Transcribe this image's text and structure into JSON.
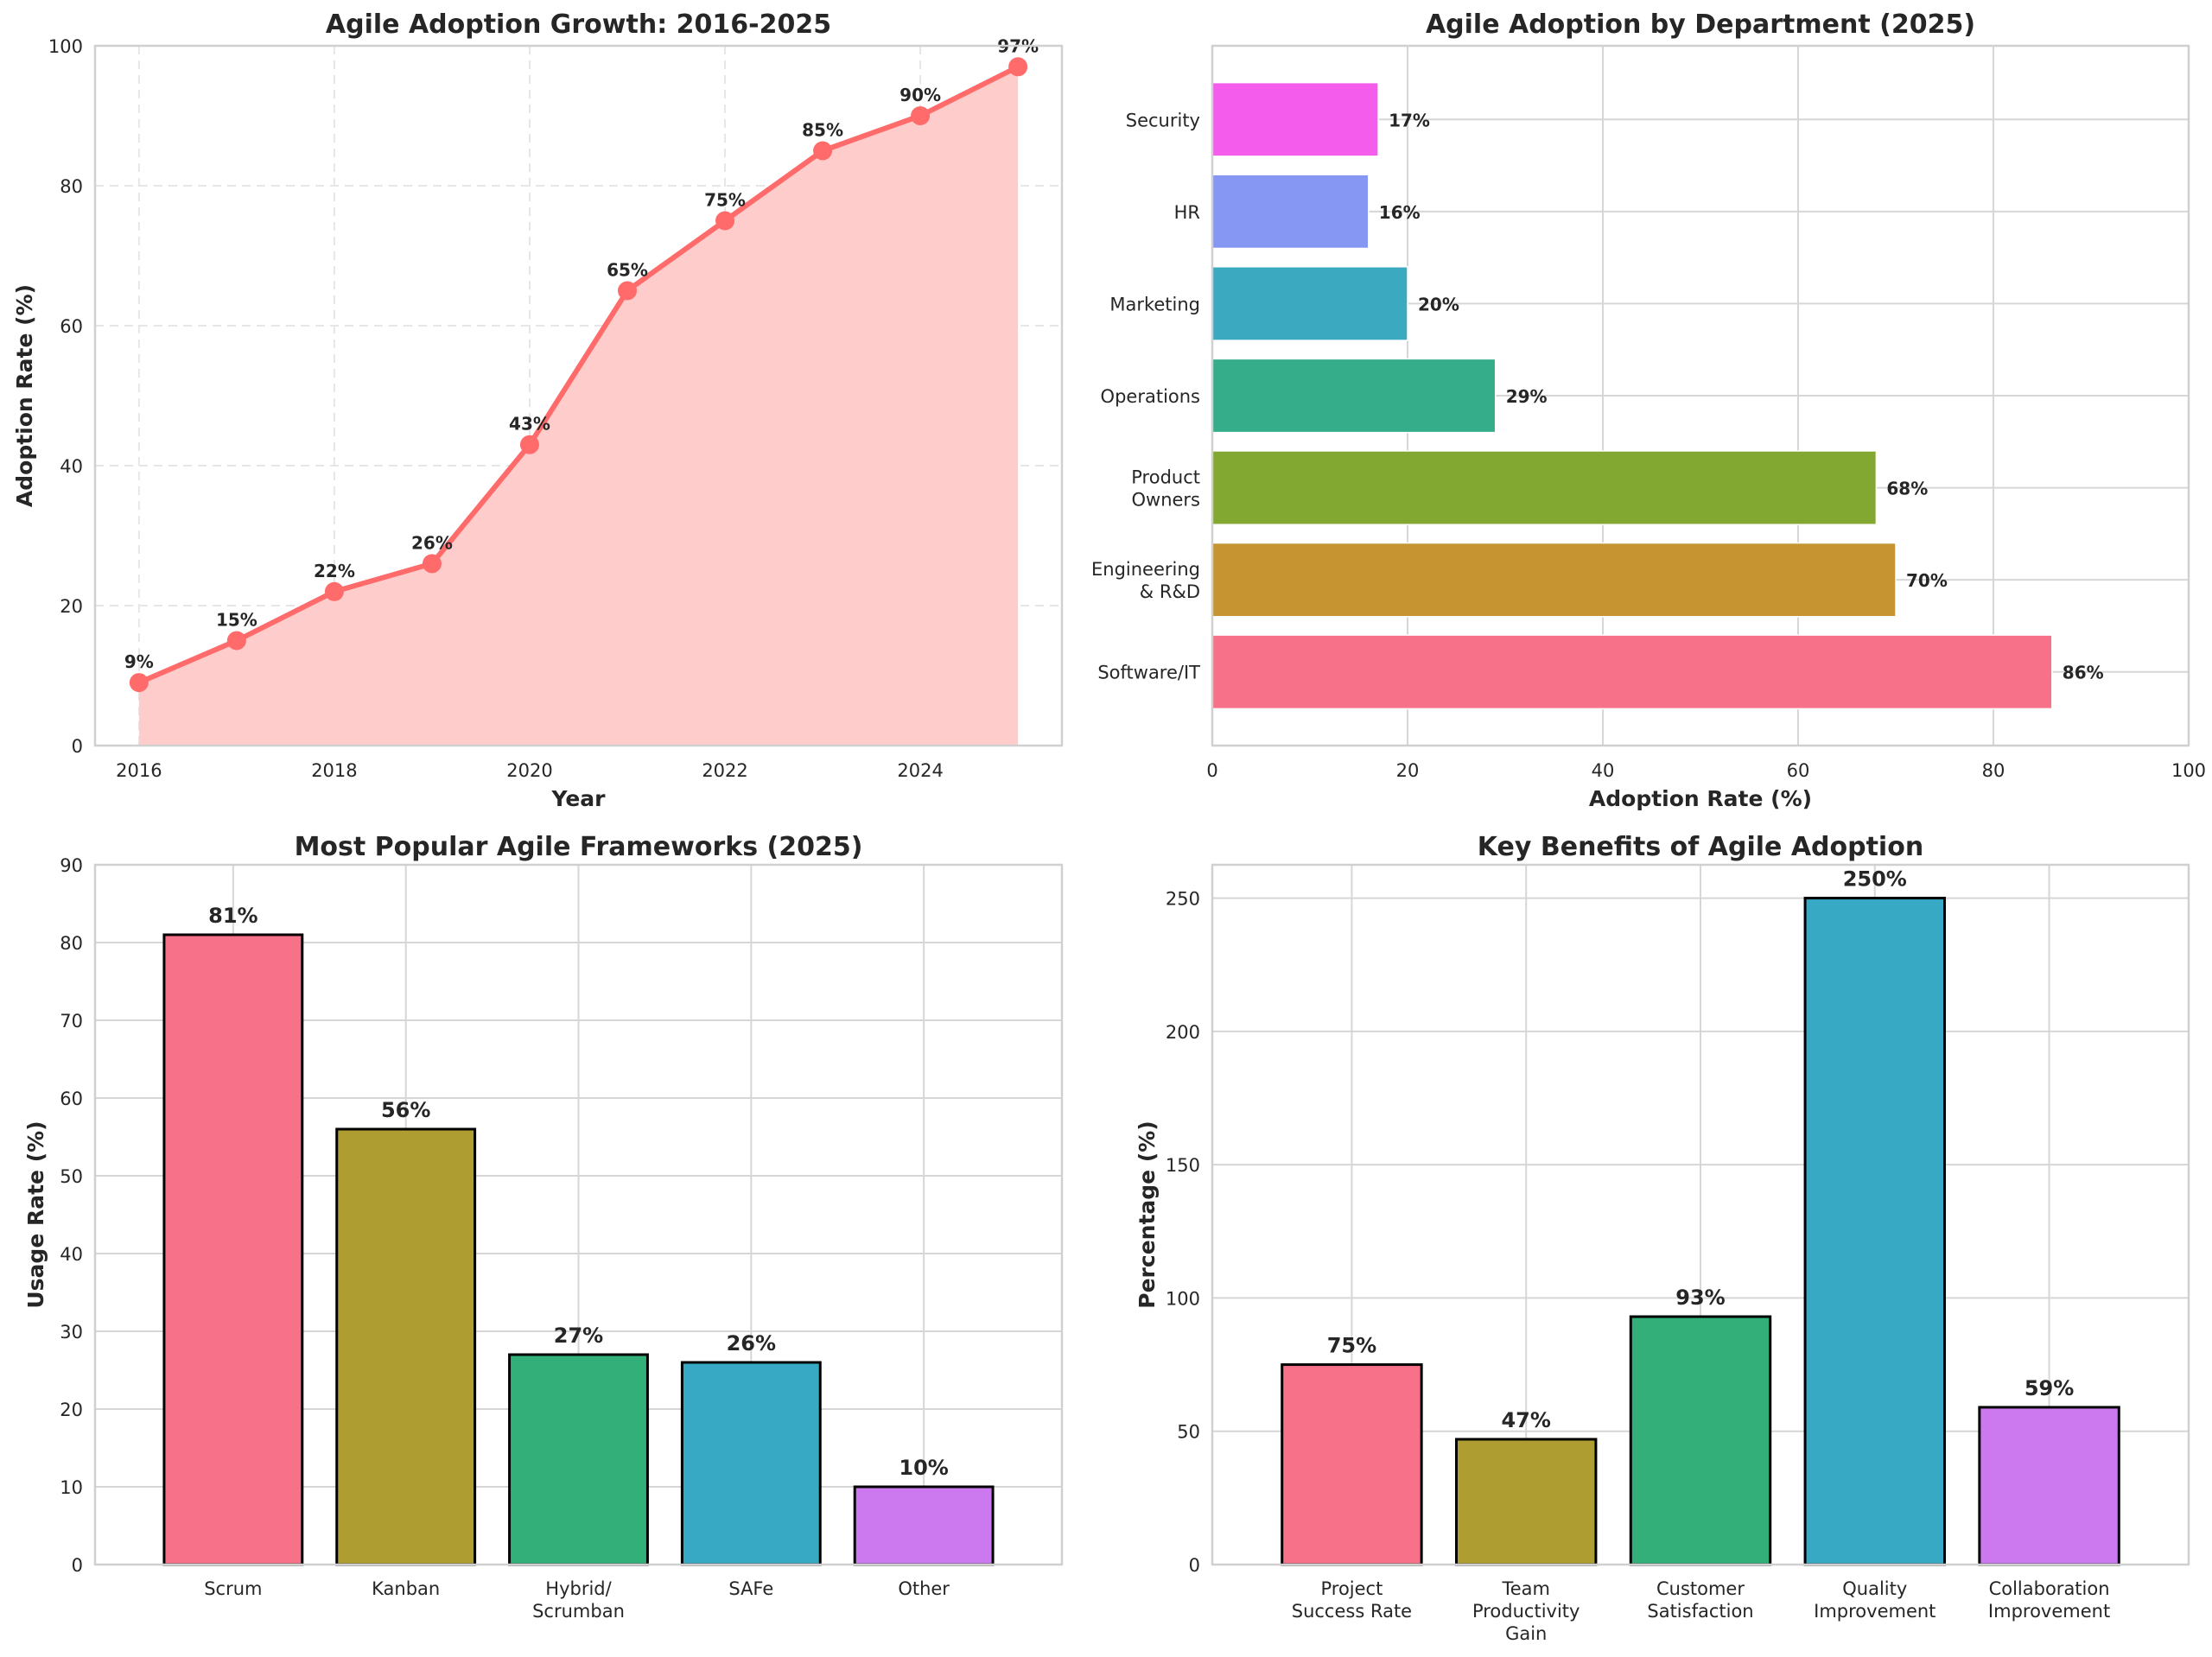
{
  "chart_data": [
    {
      "id": "growth",
      "type": "area",
      "title": "Agile Adoption Growth: 2016-2025",
      "xlabel": "Year",
      "ylabel": "Adoption Rate (%)",
      "x": [
        2016,
        2017,
        2018,
        2019,
        2020,
        2021,
        2022,
        2023,
        2024,
        2025
      ],
      "values": [
        9,
        15,
        22,
        26,
        43,
        65,
        75,
        85,
        90,
        97
      ],
      "data_labels": [
        "9%",
        "15%",
        "22%",
        "26%",
        "43%",
        "65%",
        "75%",
        "85%",
        "90%",
        "97%"
      ],
      "xlim": [
        2015.55,
        2025.45
      ],
      "ylim": [
        0,
        100
      ],
      "xticks": [
        2016,
        2018,
        2020,
        2022,
        2024
      ],
      "yticks": [
        0,
        20,
        40,
        60,
        80,
        100
      ],
      "grid": "dashed",
      "color": "#ff6b6b",
      "fill_color": "#ffcccc"
    },
    {
      "id": "department",
      "type": "bar",
      "orientation": "horizontal",
      "title": "Agile Adoption by Department (2025)",
      "xlabel": "Adoption Rate (%)",
      "ylabel": "",
      "categories": [
        "Software/IT",
        "Engineering\n& R&D",
        "Product\nOwners",
        "Operations",
        "Marketing",
        "HR",
        "Security"
      ],
      "values": [
        86,
        70,
        68,
        29,
        20,
        16,
        17
      ],
      "data_labels": [
        "86%",
        "70%",
        "68%",
        "29%",
        "20%",
        "16%",
        "17%"
      ],
      "colors": [
        "#f77189",
        "#c79432",
        "#83a832",
        "#36ad8a",
        "#3ba9bf",
        "#8597f3",
        "#f45deb"
      ],
      "xlim": [
        0,
        100
      ],
      "xticks": [
        0,
        20,
        40,
        60,
        80,
        100
      ],
      "grid": "solid"
    },
    {
      "id": "frameworks",
      "type": "bar",
      "title": "Most Popular Agile Frameworks (2025)",
      "xlabel": "",
      "ylabel": "Usage Rate (%)",
      "categories": [
        "Scrum",
        "Kanban",
        "Hybrid/\nScrumban",
        "SAFe",
        "Other"
      ],
      "values": [
        81,
        56,
        27,
        26,
        10
      ],
      "data_labels": [
        "81%",
        "56%",
        "27%",
        "26%",
        "10%"
      ],
      "colors": [
        "#f77189",
        "#ae9d31",
        "#33b07a",
        "#38a9c5",
        "#cc79f0"
      ],
      "ylim": [
        0,
        90
      ],
      "yticks": [
        0,
        10,
        20,
        30,
        40,
        50,
        60,
        70,
        80,
        90
      ],
      "grid": "solid"
    },
    {
      "id": "benefits",
      "type": "bar",
      "title": "Key Benefits of Agile Adoption",
      "xlabel": "",
      "ylabel": "Percentage (%)",
      "categories": [
        "Project\nSuccess Rate",
        "Team\nProductivity\nGain",
        "Customer\nSatisfaction",
        "Quality\nImprovement",
        "Collaboration\nImprovement"
      ],
      "values": [
        75,
        47,
        93,
        250,
        59
      ],
      "data_labels": [
        "75%",
        "47%",
        "93%",
        "250%",
        "59%"
      ],
      "colors": [
        "#f77189",
        "#ae9d31",
        "#33b07a",
        "#38a9c5",
        "#cc79f0"
      ],
      "ylim": [
        0,
        262.5
      ],
      "yticks": [
        0,
        50,
        100,
        150,
        200,
        250
      ],
      "grid": "solid"
    }
  ]
}
